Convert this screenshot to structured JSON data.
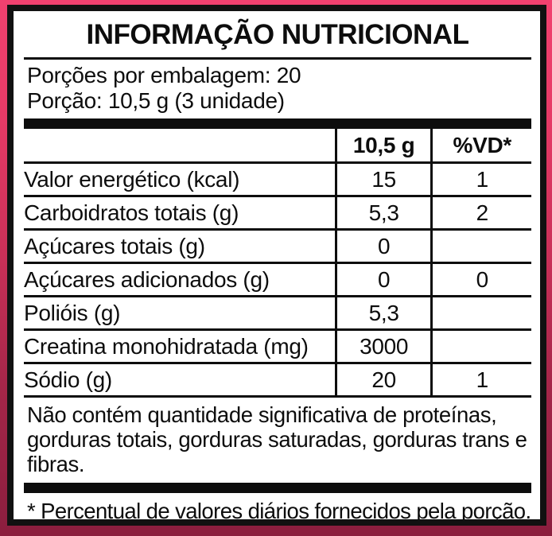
{
  "colors": {
    "background_top": "#f1416f",
    "background_bottom": "#8a1e3e",
    "panel_background": "#ffffff",
    "border_ink": "#111111",
    "text_ink": "#0d0d0d"
  },
  "label": {
    "title": "INFORMAÇÃO NUTRICIONAL",
    "servings_per_package": "Porções por embalagem: 20",
    "serving_size": "Porção: 10,5 g (3 unidade)",
    "note": "Não contém quantidade significativa de proteínas, gorduras totais, gorduras saturadas, gorduras trans e fibras.",
    "footnote": "* Percentual de valores diários fornecidos pela porção."
  },
  "table": {
    "columns": [
      "",
      "10,5 g",
      "%VD*"
    ],
    "rows": [
      {
        "label": "Valor energético (kcal)",
        "amount": "15",
        "vd": "1",
        "indent": 0
      },
      {
        "label": "Carboidratos totais (g)",
        "amount": "5,3",
        "vd": "2",
        "indent": 0
      },
      {
        "label": "Açúcares totais (g)",
        "amount": "0",
        "vd": "",
        "indent": 1
      },
      {
        "label": "Açúcares adicionados (g)",
        "amount": "0",
        "vd": "0",
        "indent": 2
      },
      {
        "label": "Polióis (g)",
        "amount": "5,3",
        "vd": "",
        "indent": 1
      },
      {
        "label": "Creatina monohidratada (mg)",
        "amount": "3000",
        "vd": "",
        "indent": 0
      },
      {
        "label": "Sódio (g)",
        "amount": "20",
        "vd": "1",
        "indent": 0
      }
    ]
  }
}
